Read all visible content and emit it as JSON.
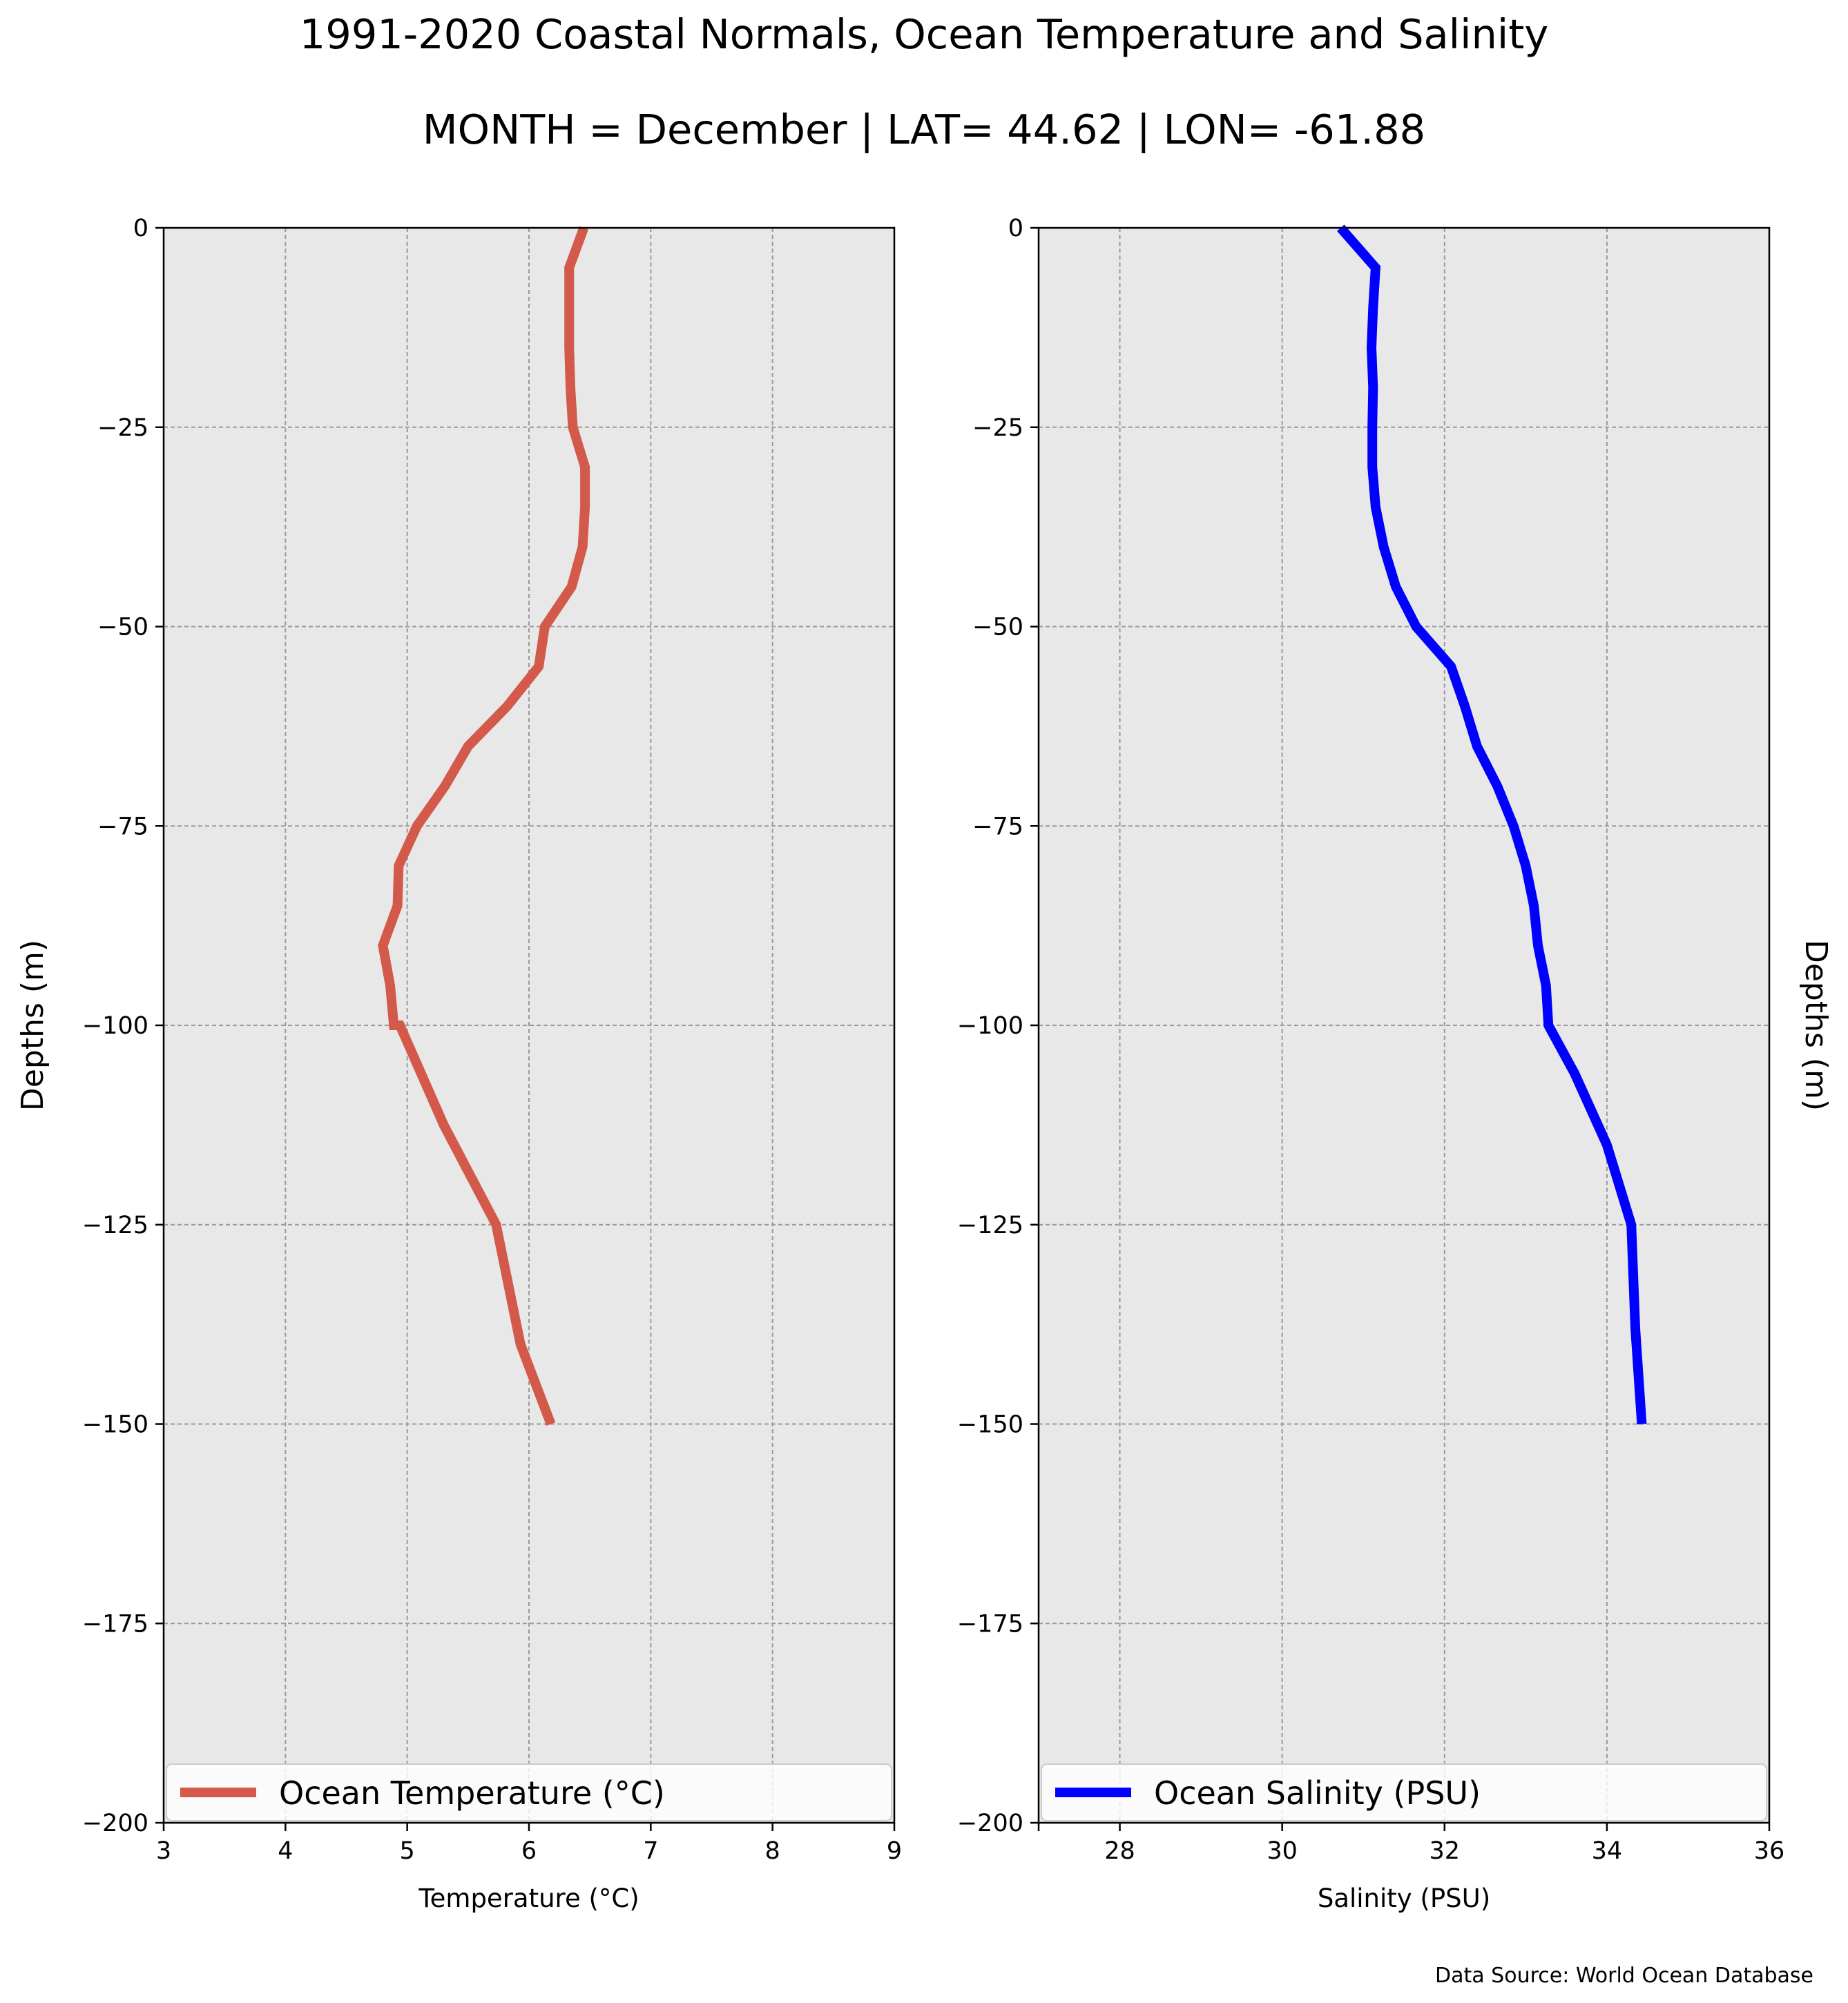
{
  "figure": {
    "title": "1991-2020 Coastal Normals, Ocean Temperature and Salinity",
    "subtitle": "MONTH = December | LAT= 44.62 | LON= -61.88",
    "source": "Data Source: World Ocean Database"
  },
  "chart_data": [
    {
      "type": "line",
      "xlabel": "Temperature (°C)",
      "ylabel": "Depths (m)",
      "xlim": [
        3,
        9
      ],
      "ylim": [
        -200,
        0
      ],
      "xticks": [
        3,
        4,
        5,
        6,
        7,
        8,
        9
      ],
      "yticks": [
        0,
        -25,
        -50,
        -75,
        -100,
        -125,
        -150,
        -175,
        -200
      ],
      "ytick_labels": [
        "0",
        "−25",
        "−50",
        "−75",
        "−100",
        "−125",
        "−150",
        "−175",
        "−200"
      ],
      "grid": true,
      "legend_position": "lower-center",
      "series": [
        {
          "name": "Ocean Temperature (°C)",
          "color": "#d35a4a",
          "x": [
            6.45,
            6.33,
            6.33,
            6.33,
            6.34,
            6.36,
            6.46,
            6.46,
            6.44,
            6.35,
            6.13,
            6.08,
            5.82,
            5.5,
            5.31,
            5.08,
            4.93,
            4.92,
            4.8,
            4.86,
            4.89,
            4.94,
            5.3,
            5.73,
            5.93,
            6.18
          ],
          "y": [
            0,
            -5,
            -10,
            -15,
            -20,
            -25,
            -30,
            -35,
            -40,
            -45,
            -50,
            -55,
            -60,
            -65,
            -70,
            -75,
            -80,
            -85,
            -90,
            -95,
            -100,
            -100,
            -112.5,
            -125,
            -140,
            -150
          ]
        }
      ]
    },
    {
      "type": "line",
      "xlabel": "Salinity (PSU)",
      "ylabel": "Depths (m)",
      "xlim": [
        27,
        36
      ],
      "ylim": [
        -200,
        0
      ],
      "xticks": [
        28,
        30,
        32,
        34,
        36
      ],
      "yticks": [
        0,
        -25,
        -50,
        -75,
        -100,
        -125,
        -150,
        -175,
        -200
      ],
      "ytick_labels": [
        "0",
        "−25",
        "−50",
        "−75",
        "−100",
        "−125",
        "−150",
        "−175",
        "−200"
      ],
      "grid": true,
      "legend_position": "lower-center",
      "series": [
        {
          "name": "Ocean Salinity (PSU)",
          "color": "#0000ff",
          "x": [
            30.72,
            31.15,
            31.12,
            31.1,
            31.12,
            31.11,
            31.11,
            31.15,
            31.25,
            31.4,
            31.65,
            32.08,
            32.25,
            32.4,
            32.65,
            32.85,
            33.0,
            33.1,
            33.15,
            33.25,
            33.28,
            33.6,
            34.0,
            34.3,
            34.35,
            34.43
          ],
          "y": [
            0,
            -5,
            -10,
            -15,
            -20,
            -25,
            -30,
            -35,
            -40,
            -45,
            -50,
            -55,
            -60,
            -65,
            -70,
            -75,
            -80,
            -85,
            -90,
            -95,
            -100,
            -106,
            -115,
            -125,
            -138,
            -150
          ]
        }
      ]
    }
  ]
}
